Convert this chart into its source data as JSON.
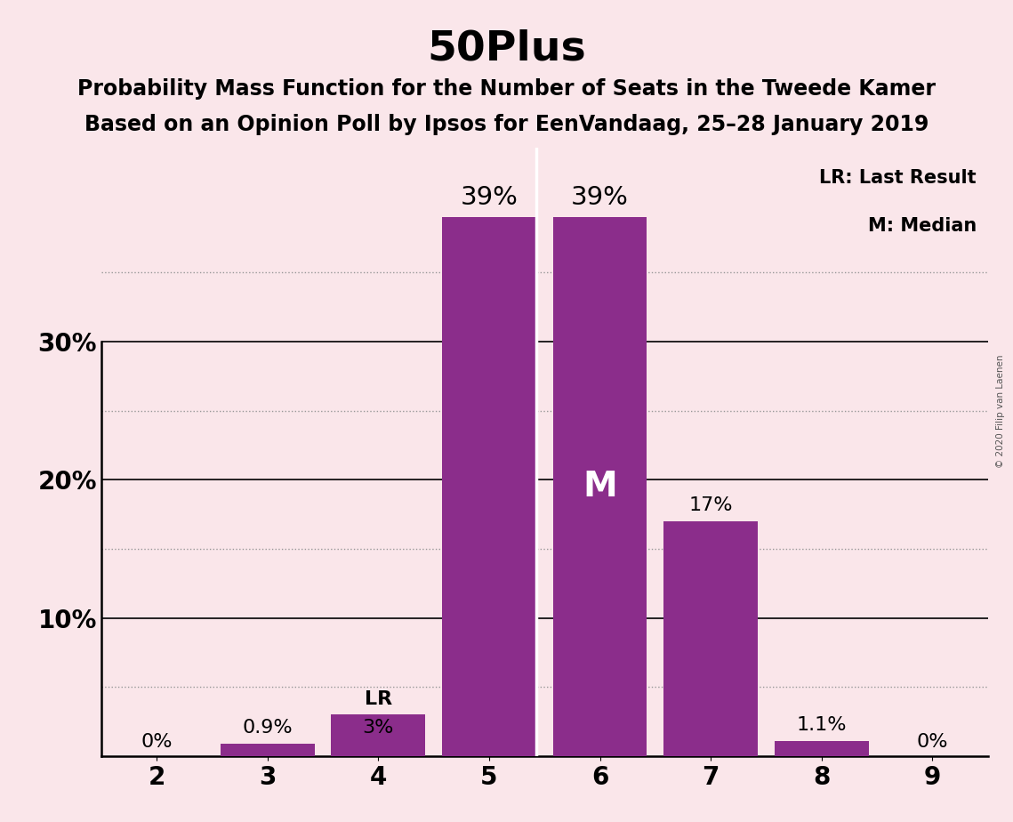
{
  "title": "50Plus",
  "subtitle1": "Probability Mass Function for the Number of Seats in the Tweede Kamer",
  "subtitle2": "Based on an Opinion Poll by Ipsos for EenVandaag, 25–28 January 2019",
  "categories": [
    2,
    3,
    4,
    5,
    6,
    7,
    8,
    9
  ],
  "values": [
    0.0,
    0.9,
    3.0,
    39.0,
    39.0,
    17.0,
    1.1,
    0.0
  ],
  "labels": [
    "0%",
    "0.9%",
    "3%",
    "39%",
    "39%",
    "17%",
    "1.1%",
    "0%"
  ],
  "bar_color": "#8B2D8B",
  "background_color": "#FAE6EA",
  "ylabel_ticks": [
    "",
    "10%",
    "20%",
    "30%"
  ],
  "yticks": [
    0,
    10,
    20,
    30
  ],
  "ylim": [
    0,
    44
  ],
  "xlim": [
    1.5,
    9.5
  ],
  "title_fontsize": 34,
  "subtitle_fontsize": 17,
  "median_bar": 6,
  "lr_bar": 4,
  "legend_lr": "LR: Last Result",
  "legend_m": "M: Median",
  "watermark": "© 2020 Filip van Laenen",
  "dotted_lines": [
    5,
    15,
    25,
    35
  ],
  "solid_lines": [
    10,
    20,
    30
  ],
  "grid_color": "#999999",
  "label_fontsize": 16,
  "axis_label_fontsize": 20,
  "legend_fontsize": 15
}
